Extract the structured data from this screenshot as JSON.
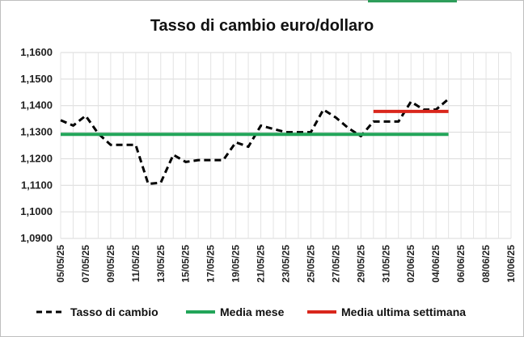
{
  "chart_data": {
    "type": "line",
    "title": "Tasso di cambio euro/dollaro",
    "xlabel": "",
    "ylabel": "",
    "ylim": [
      1.09,
      1.16
    ],
    "ytick_values": [
      1.09,
      1.1,
      1.11,
      1.12,
      1.13,
      1.14,
      1.15,
      1.16
    ],
    "ytick_labels": [
      "1,0900",
      "1,1000",
      "1,1100",
      "1,1200",
      "1,1300",
      "1,1400",
      "1,1500",
      "1,1600"
    ],
    "x_range": [
      "2025-05-05",
      "2025-06-10"
    ],
    "xtick_labels": [
      "05/05/25",
      "07/05/25",
      "09/05/25",
      "11/05/25",
      "13/05/25",
      "15/05/25",
      "17/05/25",
      "19/05/25",
      "21/05/25",
      "23/05/25",
      "25/05/25",
      "27/05/25",
      "29/05/25",
      "31/05/25",
      "02/06/25",
      "04/06/25",
      "06/06/25",
      "08/06/25",
      "10/06/25"
    ],
    "grid": true,
    "legend_position": "bottom",
    "series": [
      {
        "name": "Tasso di cambio",
        "color": "#000000",
        "style": "dashed",
        "x": [
          "2025-05-05",
          "2025-05-06",
          "2025-05-07",
          "2025-05-08",
          "2025-05-09",
          "2025-05-10",
          "2025-05-11",
          "2025-05-12",
          "2025-05-13",
          "2025-05-14",
          "2025-05-15",
          "2025-05-16",
          "2025-05-17",
          "2025-05-18",
          "2025-05-19",
          "2025-05-20",
          "2025-05-21",
          "2025-05-22",
          "2025-05-23",
          "2025-05-24",
          "2025-05-25",
          "2025-05-26",
          "2025-05-27",
          "2025-05-28",
          "2025-05-29",
          "2025-05-30",
          "2025-05-31",
          "2025-06-01",
          "2025-06-02",
          "2025-06-03",
          "2025-06-04",
          "2025-06-05"
        ],
        "values": [
          1.1345,
          1.1325,
          1.1362,
          1.1295,
          1.1252,
          1.1252,
          1.1252,
          1.1105,
          1.111,
          1.1215,
          1.1188,
          1.1195,
          1.1195,
          1.1195,
          1.1262,
          1.1245,
          1.1325,
          1.1312,
          1.13,
          1.13,
          1.13,
          1.1385,
          1.1355,
          1.1315,
          1.1285,
          1.134,
          1.134,
          1.134,
          1.1415,
          1.1385,
          1.1385,
          1.1425
        ]
      },
      {
        "name": "Media mese",
        "color": "#22a559",
        "style": "solid",
        "x": [
          "2025-05-05",
          "2025-06-05"
        ],
        "values": [
          1.1292,
          1.1292
        ]
      },
      {
        "name": "Media ultima settimana",
        "color": "#d9261c",
        "style": "solid",
        "x": [
          "2025-05-30",
          "2025-06-05"
        ],
        "values": [
          1.1378,
          1.1378
        ]
      }
    ]
  }
}
